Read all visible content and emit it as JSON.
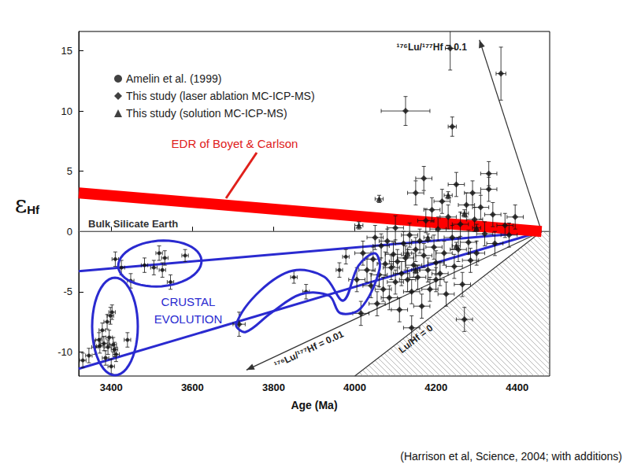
{
  "chart_data": {
    "type": "scatter",
    "x_label": "Age (Ma)",
    "y_label": {
      "symbol": "ε",
      "subscript": "Hf"
    },
    "caption": "(Harrison et al, Science, 2004; with additions)",
    "xlim": [
      3320,
      4480
    ],
    "xticks": [
      3400,
      3600,
      3800,
      4000,
      4200,
      4400
    ],
    "ylim": [
      -12,
      16.6
    ],
    "yticks": [
      -10,
      -5,
      0,
      5,
      10,
      15
    ],
    "grid": false,
    "series": [
      {
        "name": "Amelin et al. (1999)",
        "marker": "circle",
        "color": "#111111",
        "x": [
          3330,
          3345,
          3360,
          3370,
          3372,
          3378,
          3382,
          3386,
          3390,
          3392,
          3395,
          3398,
          3400,
          3402,
          3405,
          3408,
          3412,
          3440,
          3410,
          3425,
          3448,
          3482,
          3505,
          3518,
          3526,
          3532,
          3546,
          3582,
          3850,
          3880,
          3962,
          3978
        ],
        "values": [
          -10.7,
          -10.3,
          -9.6,
          -9.0,
          -9.5,
          -8.2,
          -9.3,
          -10.5,
          -7.5,
          -9.6,
          -8.8,
          -7.0,
          -11.2,
          -6.7,
          -9.4,
          -9.8,
          -10.2,
          -9.0,
          -2.3,
          -3.0,
          -4.1,
          -2.8,
          -3.0,
          -1.8,
          -3.2,
          -2.2,
          -4.2,
          -2.0,
          -3.8,
          -5.0,
          -3.2,
          -2.1
        ],
        "y_error": [
          0.6,
          0.6,
          0.6,
          0.6,
          0.6,
          0.6,
          0.6,
          0.6,
          0.6,
          0.6,
          0.6,
          0.7,
          0.6,
          0.6,
          0.6,
          0.6,
          0.6,
          0.6,
          0.6,
          0.6,
          0.6,
          0.6,
          0.6,
          0.6,
          0.6,
          0.6,
          0.6,
          0.5,
          0.5,
          0.6,
          0.6,
          0.6
        ],
        "x_error": [
          8,
          8,
          8,
          8,
          8,
          8,
          8,
          8,
          8,
          8,
          8,
          8,
          8,
          8,
          8,
          8,
          8,
          8,
          8,
          8,
          8,
          8,
          8,
          8,
          8,
          8,
          8,
          8,
          8,
          8,
          8,
          8
        ]
      },
      {
        "name": "This study (laser ablation MC-ICP-MS)",
        "marker": "diamond",
        "color": "#111111",
        "x": [
          3715,
          4005,
          4020,
          4030,
          4040,
          4045,
          4050,
          4055,
          4060,
          4065,
          4070,
          4075,
          4080,
          4085,
          4090,
          4095,
          4100,
          4100,
          4105,
          4110,
          4115,
          4120,
          4125,
          4125,
          4130,
          4135,
          4140,
          4145,
          4150,
          4150,
          4155,
          4160,
          4165,
          4170,
          4170,
          4175,
          4180,
          4185,
          4190,
          4195,
          4200,
          4200,
          4205,
          4210,
          4215,
          4220,
          4225,
          4230,
          4235,
          4240,
          4240,
          4245,
          4250,
          4255,
          4260,
          4265,
          4270,
          4275,
          4280,
          4285,
          4290,
          4295,
          4300,
          4310,
          4320,
          4330,
          4330,
          4340,
          4345,
          4360,
          4370,
          4380,
          4395,
          4015,
          4140
        ],
        "values": [
          -7.7,
          -4.0,
          -1.8,
          -3.2,
          -4.5,
          -2.3,
          -0.5,
          -6.0,
          -3.6,
          -1.2,
          -4.8,
          -2.7,
          -0.8,
          -5.5,
          -3.0,
          -1.9,
          -4.2,
          0.3,
          -2.5,
          -6.5,
          -3.5,
          -1.0,
          10.0,
          -2.2,
          -4.0,
          -0.3,
          -5.0,
          -2.8,
          -1.5,
          3.2,
          -3.8,
          -0.8,
          -6.2,
          -2.0,
          4.4,
          0.9,
          -3.2,
          -4.8,
          1.8,
          -1.3,
          -2.6,
          -4.0,
          0.2,
          -3.5,
          2.5,
          -1.8,
          -5.2,
          1.2,
          15.2,
          8.7,
          -0.5,
          -2.9,
          3.9,
          -1.5,
          0.6,
          -4.4,
          -7.3,
          2.2,
          -0.9,
          -2.4,
          3.2,
          1.0,
          -1.8,
          2.0,
          -0.2,
          4.8,
          3.5,
          1.4,
          -1.0,
          13.1,
          0.5,
          -0.3,
          1.2,
          -6.8,
          -8.0
        ],
        "y_error": [
          1,
          1,
          1,
          1,
          1,
          1,
          1,
          1,
          1,
          1,
          1,
          1,
          1,
          1,
          1,
          1,
          1,
          1,
          1,
          1,
          1,
          1,
          1.2,
          1,
          1,
          1,
          1,
          1,
          1,
          1,
          1,
          1,
          1,
          1,
          1,
          1,
          1,
          1,
          1,
          1,
          1,
          1,
          1,
          1,
          1,
          1,
          1,
          1,
          1.8,
          0.8,
          1,
          1,
          1,
          1,
          1,
          1,
          1,
          1,
          1,
          1,
          1,
          1,
          1,
          1,
          1,
          1,
          1,
          1,
          1,
          2.2,
          1,
          1,
          1,
          1,
          1
        ],
        "x_error": [
          15,
          20,
          20,
          20,
          20,
          20,
          20,
          20,
          20,
          20,
          20,
          20,
          20,
          20,
          20,
          20,
          20,
          20,
          20,
          20,
          20,
          20,
          60,
          20,
          20,
          20,
          20,
          20,
          20,
          20,
          20,
          20,
          20,
          20,
          20,
          20,
          20,
          20,
          20,
          20,
          20,
          20,
          20,
          20,
          20,
          20,
          20,
          20,
          12,
          10,
          20,
          20,
          20,
          20,
          20,
          20,
          20,
          20,
          20,
          20,
          20,
          20,
          20,
          20,
          20,
          20,
          20,
          20,
          20,
          12,
          20,
          20,
          20,
          20,
          20
        ]
      },
      {
        "name": "This study (solution MC-ICP-MS)",
        "marker": "triangle",
        "color": "#111111",
        "x": [
          4010,
          4060,
          4130,
          4150,
          4180,
          4230,
          4250,
          4270,
          4300
        ],
        "values": [
          0.5,
          2.7,
          -1.8,
          -3.2,
          -0.5,
          3.0,
          -1.2,
          1.5,
          0.3
        ],
        "y_error": [
          0.3,
          0.3,
          0.3,
          0.3,
          0.3,
          0.3,
          0.3,
          0.3,
          0.3
        ],
        "x_error": [
          10,
          10,
          10,
          10,
          10,
          10,
          10,
          10,
          10
        ]
      }
    ],
    "reference_lines": [
      {
        "label": "Bulk Silicate Earth",
        "x": [
          3320,
          4480
        ],
        "values": [
          0,
          0
        ],
        "color": "#808080",
        "type": "line"
      },
      {
        "x": [
          3320,
          4460
        ],
        "values": [
          -3.3,
          0
        ],
        "color": "#2a2ad0",
        "type": "line",
        "line_style": "bold"
      },
      {
        "x": [
          3320,
          4460
        ],
        "values": [
          -11.4,
          0
        ],
        "color": "#2a2ad0",
        "type": "line",
        "line_style": "bold"
      },
      {
        "x": [
          3320,
          4460
        ],
        "values": [
          3.2,
          0
        ],
        "color": "#ff0000",
        "type": "band"
      },
      {
        "label": "¹⁷⁶Lu/¹⁷⁷Hf = 0.1",
        "x": [
          4460,
          4307
        ],
        "values": [
          0,
          15.9
        ],
        "color": "#333333",
        "type": "arrow"
      },
      {
        "label": "¹⁷⁶Lu/¹⁷⁷Hf = 0.01",
        "x": [
          4460,
          3733
        ],
        "values": [
          0,
          -11.5
        ],
        "color": "#333333",
        "type": "arrow"
      },
      {
        "label": "Lu/Hf = 0",
        "x": [
          4460,
          4000
        ],
        "values": [
          0,
          -12
        ],
        "color": "#333333",
        "type": "boundary"
      }
    ],
    "annotations": [
      {
        "text": "EDR of Boyet & Carlson",
        "color": "#e0201b"
      },
      {
        "text": "CRUSTAL\nEVOLUTION",
        "color": "#2a2ad0"
      }
    ]
  }
}
